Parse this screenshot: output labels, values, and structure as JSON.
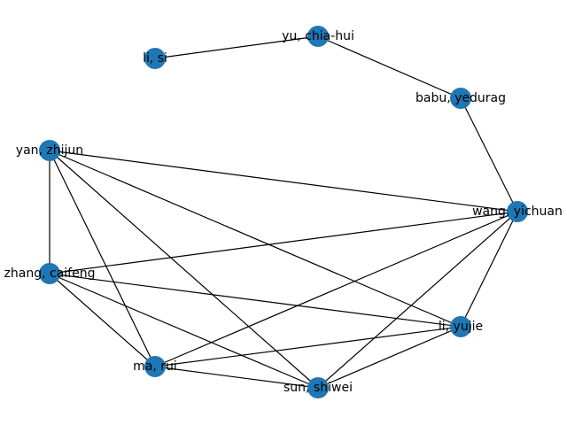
{
  "graph": {
    "node_color": "#1f77b4",
    "edge_color": "#000000",
    "nodes": [
      {
        "id": "li_si",
        "label": "li, si"
      },
      {
        "id": "yu_chia_hui",
        "label": "yu, chia-hui"
      },
      {
        "id": "babu_yedurag",
        "label": "babu, yedurag"
      },
      {
        "id": "yan_zhijun",
        "label": "yan, zhijun"
      },
      {
        "id": "wang_yichuan",
        "label": "wang, yichuan"
      },
      {
        "id": "zhang_caifeng",
        "label": "zhang, caifeng"
      },
      {
        "id": "li_yujie",
        "label": "li, yujie"
      },
      {
        "id": "ma_rui",
        "label": "ma, rui"
      },
      {
        "id": "sun_shiwei",
        "label": "sun, shiwei"
      }
    ],
    "edges": [
      [
        "li_si",
        "yu_chia_hui"
      ],
      [
        "yu_chia_hui",
        "babu_yedurag"
      ],
      [
        "babu_yedurag",
        "wang_yichuan"
      ],
      [
        "yan_zhijun",
        "wang_yichuan"
      ],
      [
        "yan_zhijun",
        "zhang_caifeng"
      ],
      [
        "yan_zhijun",
        "li_yujie"
      ],
      [
        "yan_zhijun",
        "ma_rui"
      ],
      [
        "yan_zhijun",
        "sun_shiwei"
      ],
      [
        "wang_yichuan",
        "zhang_caifeng"
      ],
      [
        "wang_yichuan",
        "li_yujie"
      ],
      [
        "wang_yichuan",
        "ma_rui"
      ],
      [
        "wang_yichuan",
        "sun_shiwei"
      ],
      [
        "zhang_caifeng",
        "li_yujie"
      ],
      [
        "zhang_caifeng",
        "ma_rui"
      ],
      [
        "zhang_caifeng",
        "sun_shiwei"
      ],
      [
        "li_yujie",
        "ma_rui"
      ],
      [
        "li_yujie",
        "sun_shiwei"
      ],
      [
        "ma_rui",
        "sun_shiwei"
      ]
    ]
  }
}
